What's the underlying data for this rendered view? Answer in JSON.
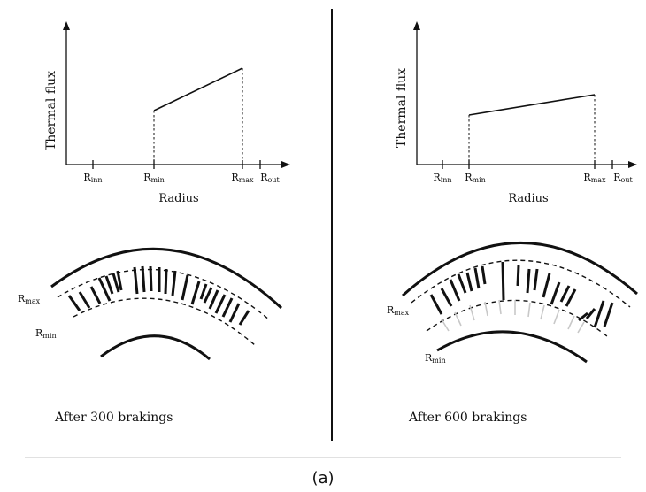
{
  "left_panel": {
    "ylabel": "Thermal flux",
    "xlabel": "Radius",
    "ticks": [
      {
        "main": "R",
        "sub": "inn"
      },
      {
        "main": "R",
        "sub": "min"
      },
      {
        "main": "R",
        "sub": "max"
      },
      {
        "main": "R",
        "sub": "out"
      }
    ],
    "ring_labels": {
      "rmax": {
        "main": "R",
        "sub": "max"
      },
      "rmin": {
        "main": "R",
        "sub": "min"
      }
    },
    "caption": "After 300 brakings"
  },
  "right_panel": {
    "ylabel": "Thermal flux",
    "xlabel": "Radius",
    "ticks": [
      {
        "main": "R",
        "sub": "inn"
      },
      {
        "main": "R",
        "sub": "min"
      },
      {
        "main": "R",
        "sub": "max"
      },
      {
        "main": "R",
        "sub": "out"
      }
    ],
    "ring_labels": {
      "rmax": {
        "main": "R",
        "sub": "max"
      },
      "rmin": {
        "main": "R",
        "sub": "min"
      }
    },
    "caption": "After 600 brakings"
  },
  "figure_label": "(a)"
}
